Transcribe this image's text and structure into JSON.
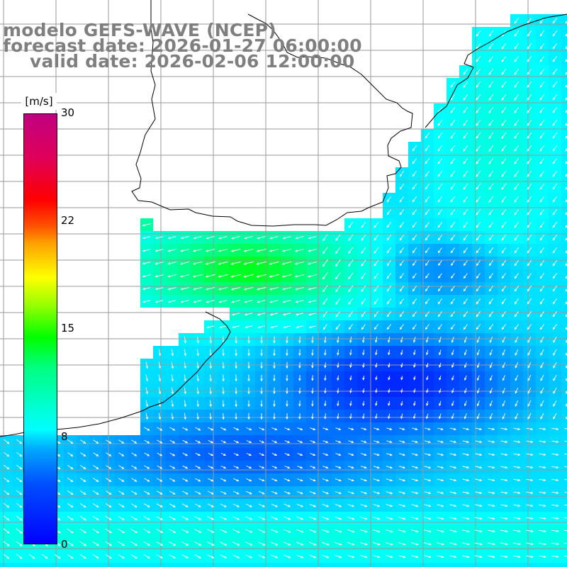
{
  "title": {
    "line1": "modelo GEFS-WAVE (NCEP)",
    "line2": "forecast date: 2026-01-27 06:00:00",
    "line3": "valid date: 2026-02-06 12:00:00"
  },
  "colorbar": {
    "unit": "[m/s]",
    "ticks": [
      "30",
      "22",
      "15",
      "8",
      "0"
    ],
    "min": 0,
    "max": 30
  },
  "colors": {
    "title_text": "#7f7f7f",
    "coastline": "#000000",
    "gridlines": "#9a9a9a",
    "vectors": "#ffffff"
  }
}
